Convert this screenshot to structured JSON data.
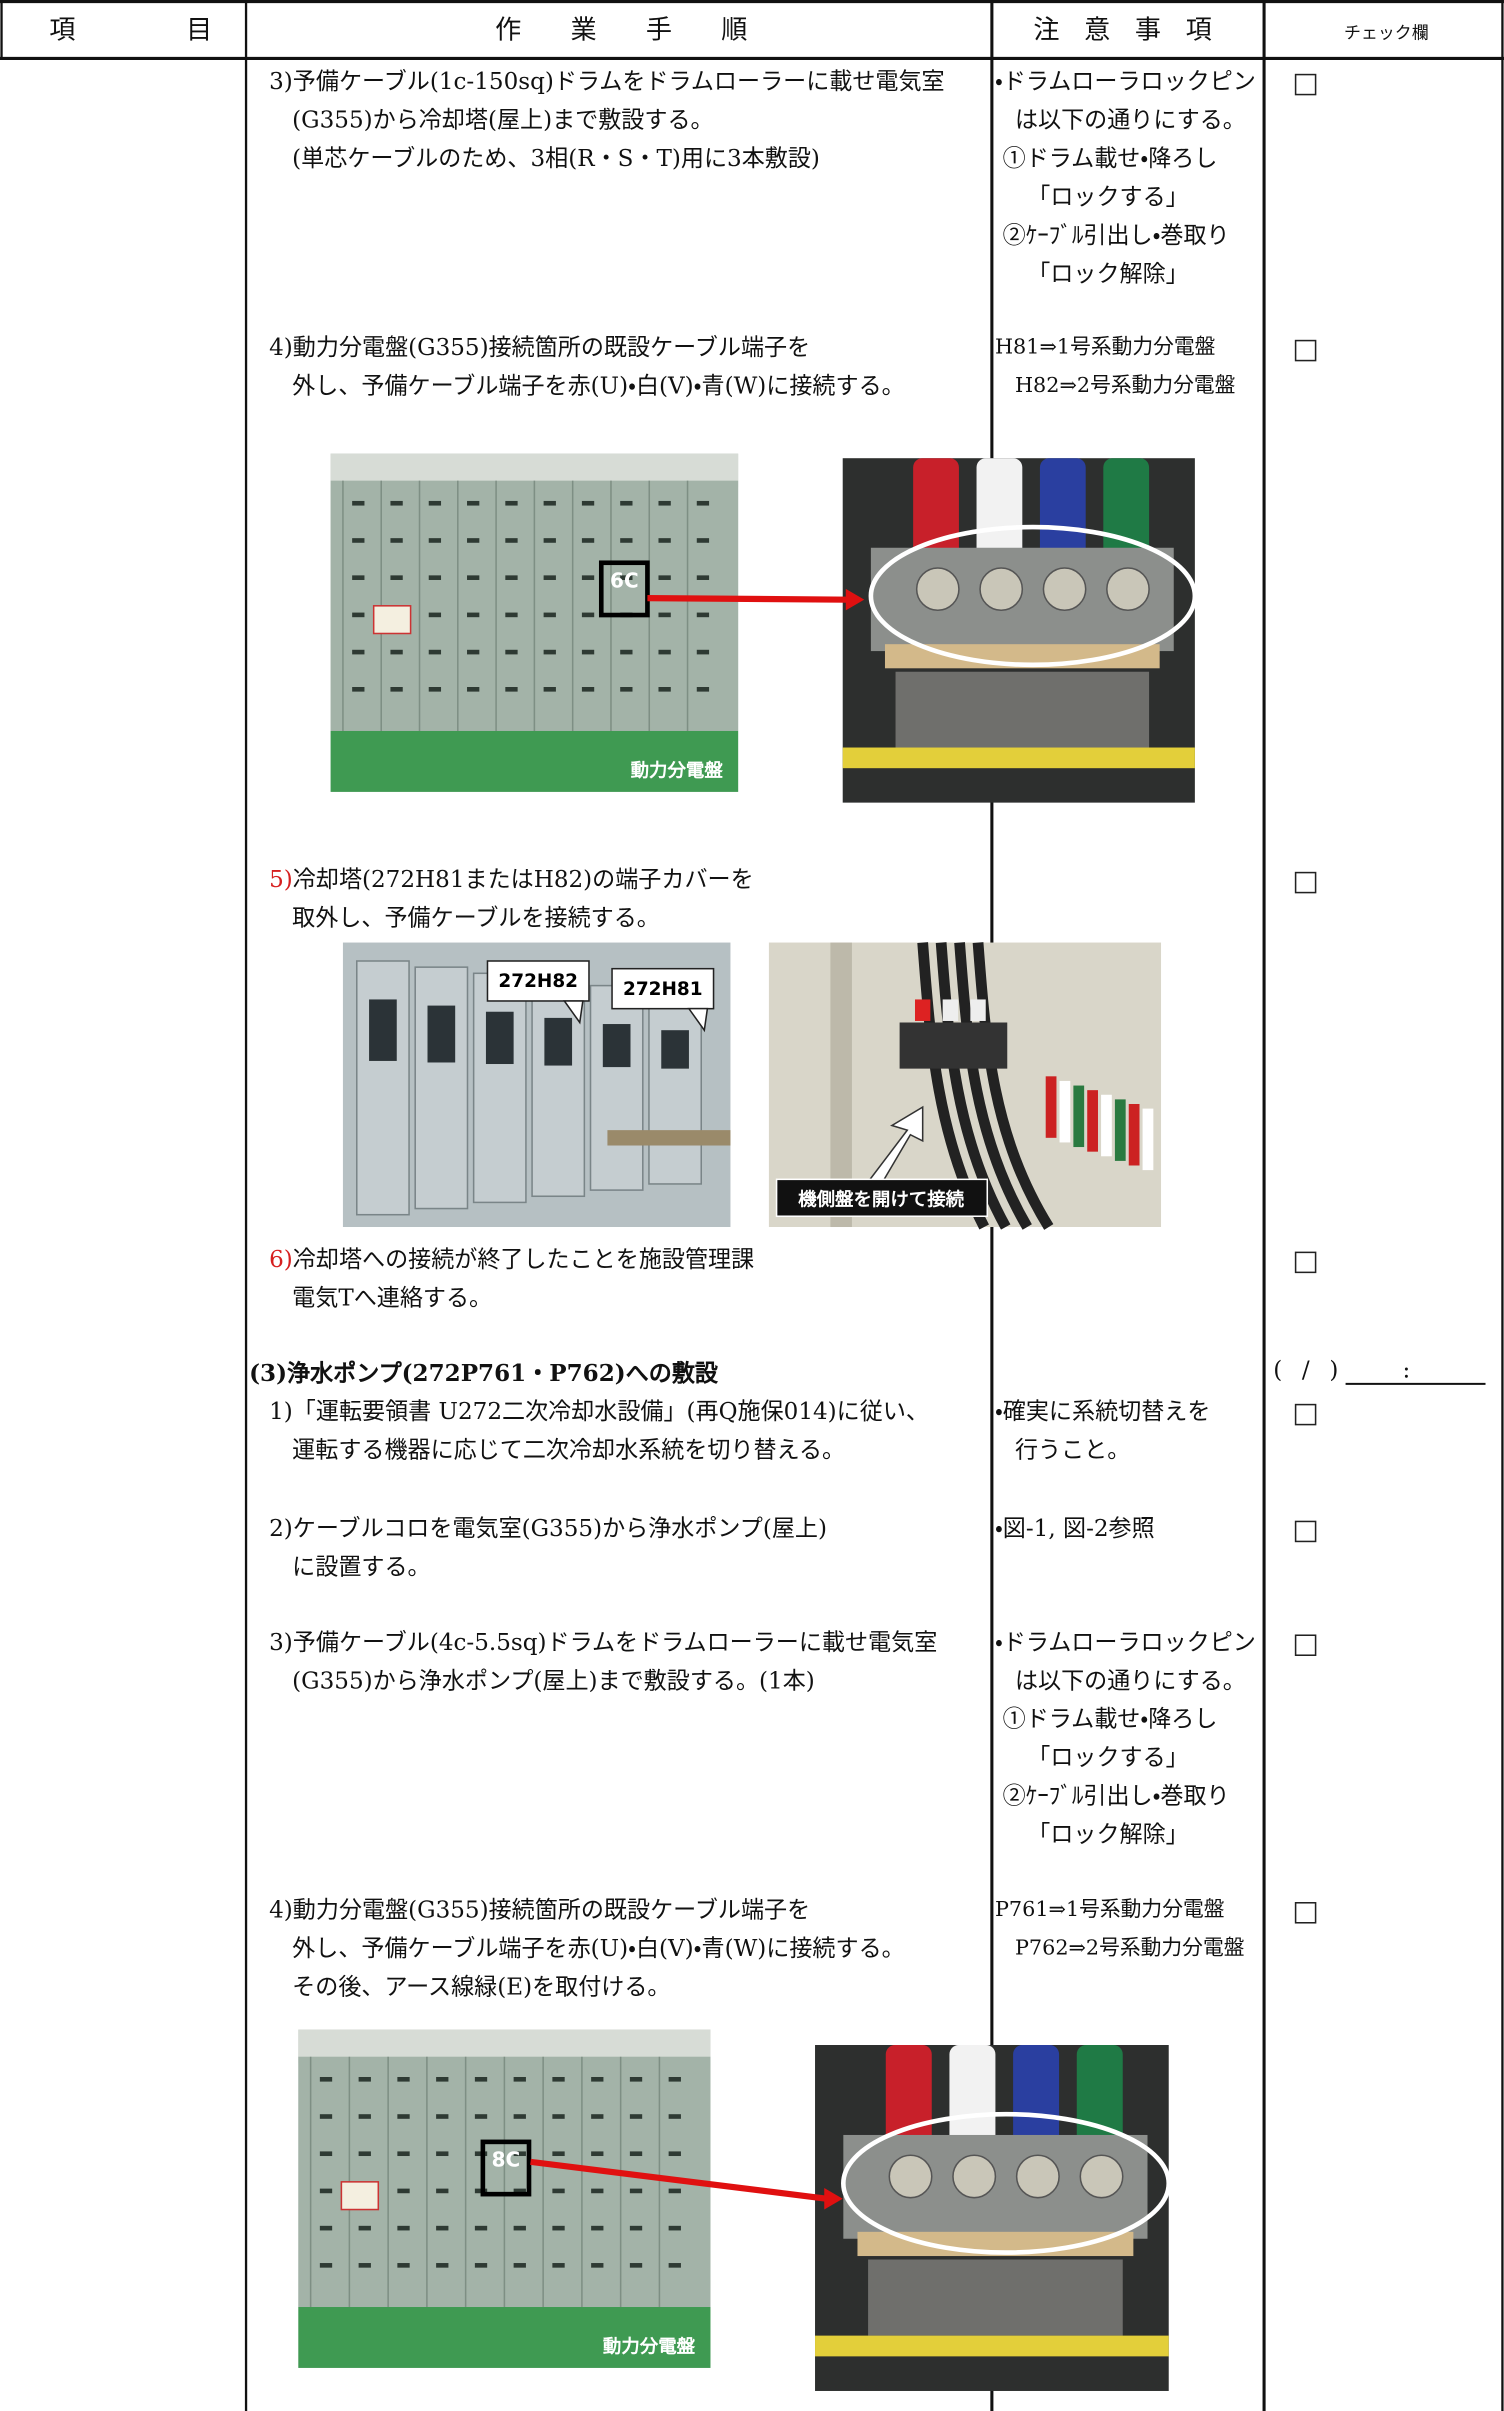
{
  "header": {
    "item": "項目",
    "procedure": "作業手順",
    "notes": "注意事項",
    "check": "チェック欄"
  },
  "steps": [
    {
      "label": "3)",
      "lines": [
        "予備ケーブル(1c-150sq)ドラムをドラムローラーに載せ電気室",
        "(G355)から冷却塔(屋上)まで敷設する。",
        "(単芯ケーブルのため、3相(R・S・T)用に3本敷設)"
      ],
      "notes": [
        "・ドラムローラロックピン",
        "は以下の通りにする。",
        "①ドラム載せ・降ろし",
        "「ロックする」",
        "②ｹｰﾌﾞﾙ引出し・巻取り",
        "「ロック解除」"
      ]
    },
    {
      "label": "4)",
      "lines": [
        "動力分電盤(G355)接続箇所の既設ケーブル端子を",
        "外し、予備ケーブル端子を赤(U)・白(V)・青(W)に接続する。"
      ],
      "notes": [
        "H81⇒1号系動力分電盤",
        "H82⇒2号系動力分電盤"
      ]
    },
    {
      "label": "5)",
      "label_color": "#d62020",
      "lines": [
        "冷却塔(272H81またはH82)の端子カバーを",
        "取外し、予備ケーブルを接続する。"
      ],
      "notes": []
    },
    {
      "label": "6)",
      "label_color": "#d62020",
      "lines": [
        "冷却塔への接続が終了したことを施設管理課",
        "電気Tへ連絡する。"
      ],
      "notes": []
    },
    {
      "label": "1)",
      "lines": [
        "「運転要領書 U272二次冷却水設備」(再Q施保014)に従い、",
        "運転する機器に応じて二次冷却水系統を切り替える。"
      ],
      "notes": [
        "・確実に系統切替えを",
        "行うこと。"
      ]
    },
    {
      "label": "2)",
      "lines": [
        "ケーブルコロを電気室(G355)から浄水ポンプ(屋上)",
        "に設置する。"
      ],
      "notes": [
        "・図-1, 図-2参照"
      ]
    },
    {
      "label": "3)",
      "lines": [
        "予備ケーブル(4c-5.5sq)ドラムをドラムローラーに載せ電気室",
        "(G355)から浄水ポンプ(屋上)まで敷設する。(1本)"
      ],
      "notes": [
        "・ドラムローラロックピン",
        "は以下の通りにする。",
        "①ドラム載せ・降ろし",
        "「ロックする」",
        "②ｹｰﾌﾞﾙ引出し・巻取り",
        "「ロック解除」"
      ]
    },
    {
      "label": "4)",
      "lines": [
        "動力分電盤(G355)接続箇所の既設ケーブル端子を",
        "外し、予備ケーブル端子を赤(U)・白(V)・青(W)に接続する。",
        "その後、アース線緑(E)を取付ける。"
      ],
      "notes": [
        "P761⇒1号系動力分電盤",
        "P762⇒2号系動力分電盤"
      ]
    }
  ],
  "heading": "(3)浄水ポンプ(272P761・P762)への敷設",
  "time_field": {
    "date": "( / )",
    "time": ":"
  },
  "figures": [
    {
      "panel_label": "6C",
      "caption": "動力分電盤"
    },
    {
      "callouts": [
        "272H82",
        "272H81"
      ],
      "caption": "機側盤を開けて接続"
    },
    {
      "panel_label": "8C",
      "caption": "動力分電盤"
    }
  ]
}
